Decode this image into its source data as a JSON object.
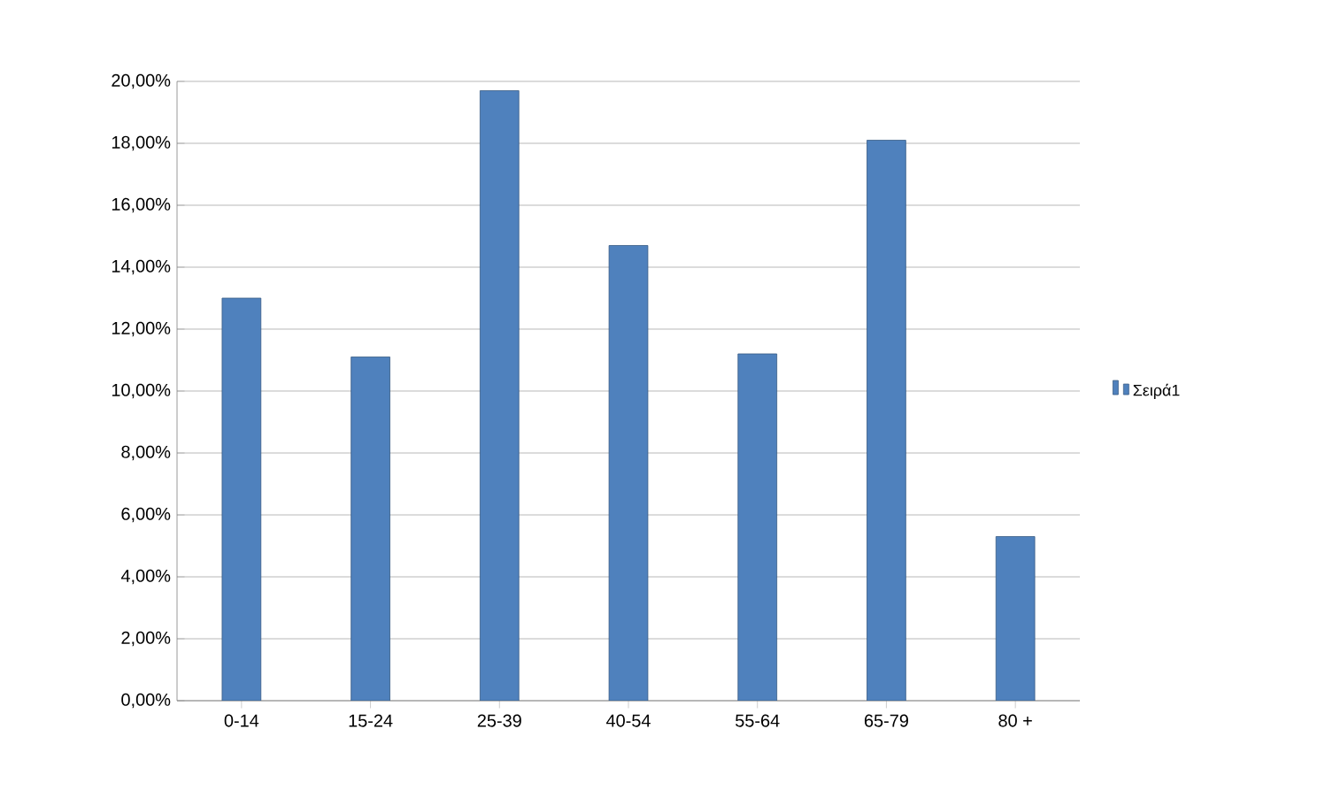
{
  "chart_data": {
    "type": "bar",
    "categories": [
      "0-14",
      "15-24",
      "25-39",
      "40-54",
      "55-64",
      "65-79",
      "80 +"
    ],
    "series": [
      {
        "name": "Σειρά1",
        "color": "#4f81bd",
        "values": [
          13.0,
          11.1,
          19.7,
          14.7,
          11.2,
          18.1,
          5.3
        ]
      }
    ],
    "ylim": [
      0,
      20
    ],
    "yticks": [
      {
        "value": 0,
        "label": "0,00%"
      },
      {
        "value": 2,
        "label": "2,00%"
      },
      {
        "value": 4,
        "label": "4,00%"
      },
      {
        "value": 6,
        "label": "6,00%"
      },
      {
        "value": 8,
        "label": "8,00%"
      },
      {
        "value": 10,
        "label": "10,00%"
      },
      {
        "value": 12,
        "label": "12,00%"
      },
      {
        "value": 14,
        "label": "14,00%"
      },
      {
        "value": 16,
        "label": "16,00%"
      },
      {
        "value": 18,
        "label": "18,00%"
      },
      {
        "value": 20,
        "label": "20,00%"
      }
    ],
    "grid": "y",
    "legend": "right"
  }
}
